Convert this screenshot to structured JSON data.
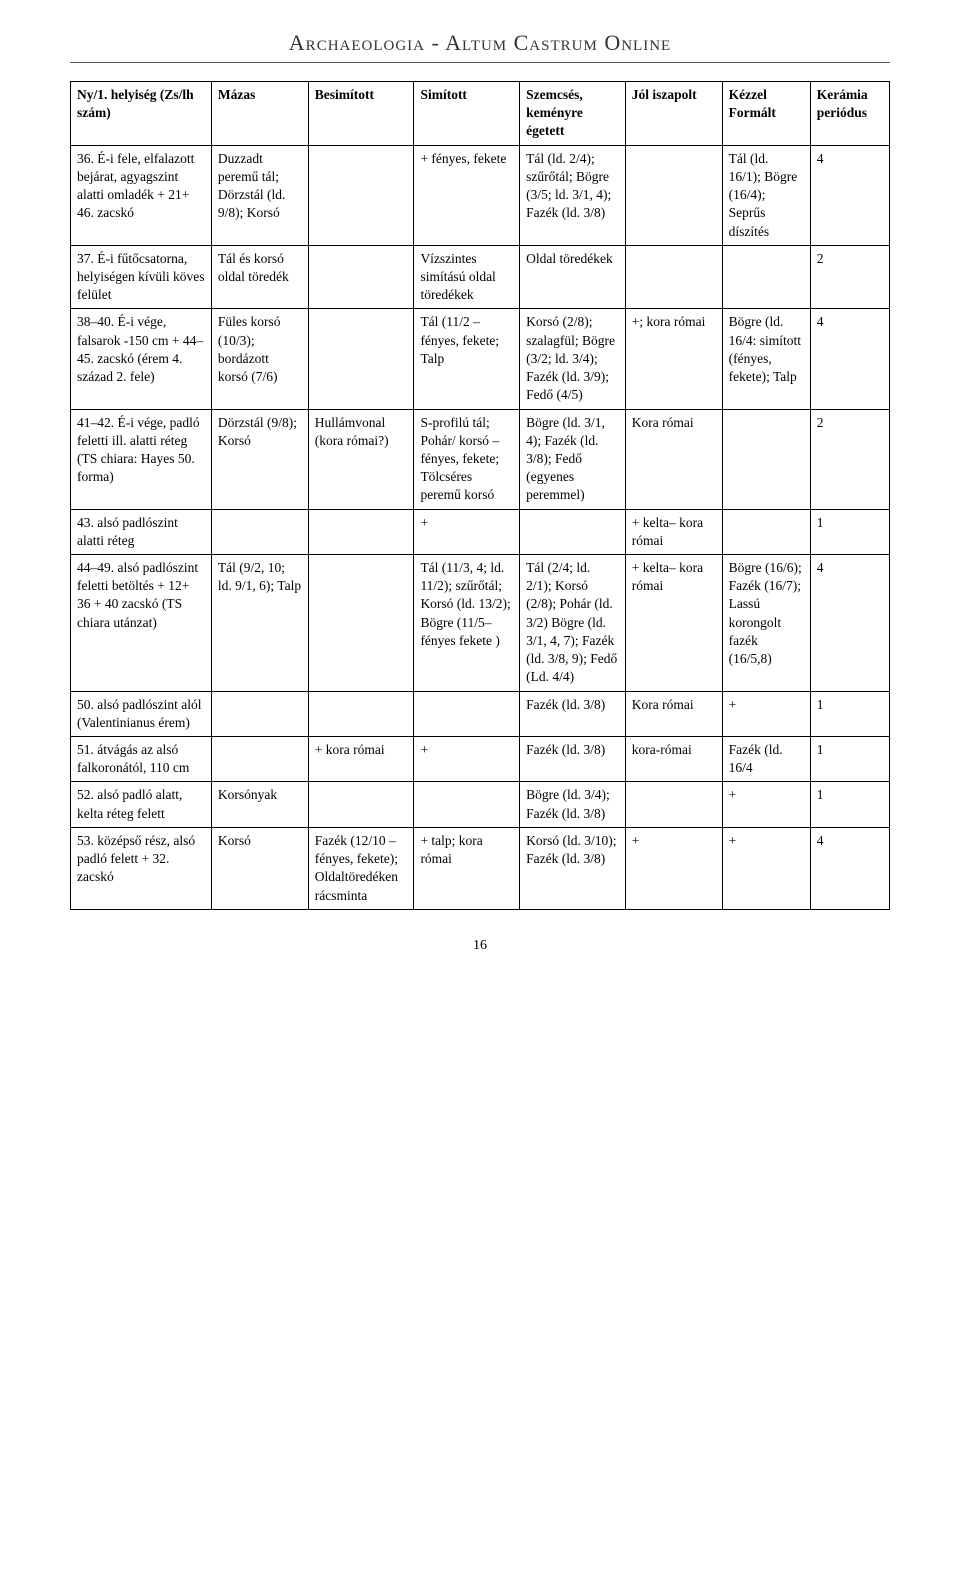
{
  "header": {
    "title": "Archaeologia - Altum Castrum Online"
  },
  "page_number": "16",
  "columns": [
    "Ny/1. helyiség (Zs/lh szám)",
    "Mázas",
    "Besimított",
    "Simított",
    "Szemcsés, keményre égetett",
    "Jól iszapolt",
    "Kézzel Formált",
    "Kerámia periódus"
  ],
  "rows": [
    {
      "c0": "36. É-i fele, elfalazott bejárat, agyagszint alatti omladék + 21+ 46. zacskó",
      "c1": "Duzzadt peremű tál; Dörzstál (ld. 9/8); Korsó",
      "c2": "",
      "c3": "+ fényes, fekete",
      "c4": "Tál (ld. 2/4); szűrőtál; Bögre (3/5; ld. 3/1, 4); Fazék (ld. 3/8)",
      "c5": "",
      "c6": "Tál (ld. 16/1); Bögre (16/4); Seprűs díszítés",
      "c7": "4"
    },
    {
      "c0": "37. É-i fűtőcsatorna, helyiségen kívüli köves felület",
      "c1": "Tál és korsó oldal töredék",
      "c2": "",
      "c3": "Vízszintes simítású oldal töredékek",
      "c4": "Oldal töredékek",
      "c5": "",
      "c6": "",
      "c7": "2"
    },
    {
      "c0": "38–40. É-i vége, falsarok -150 cm + 44–45. zacskó (érem 4. század 2. fele)",
      "c1": "Füles korsó (10/3); bordázott korsó (7/6)",
      "c2": "",
      "c3": "Tál (11/2 – fényes, fekete; Talp",
      "c4": "Korsó (2/8); szalagfül; Bögre (3/2; ld. 3/4); Fazék (ld. 3/9); Fedő (4/5)",
      "c5": "+; kora római",
      "c6": "Bögre (ld. 16/4: simított (fényes, fekete); Talp",
      "c7": "4"
    },
    {
      "c0": "41–42. É-i vége, padló feletti ill. alatti réteg (TS chiara: Hayes 50. forma)",
      "c1": "Dörzstál (9/8); Korsó",
      "c2": "Hullámvonal (kora római?)",
      "c3": "S-profilú tál; Pohár/ korsó – fényes, fekete; Tölcséres peremű korsó",
      "c4": "Bögre (ld. 3/1, 4); Fazék (ld. 3/8); Fedő (egyenes peremmel)",
      "c5": "Kora római",
      "c6": "",
      "c7": "2"
    },
    {
      "c0": "43. alsó padlószint alatti réteg",
      "c1": "",
      "c2": "",
      "c3": "+",
      "c4": "",
      "c5": "+ kelta– kora római",
      "c6": "",
      "c7": "1"
    },
    {
      "c0": "44–49. alsó padlószint feletti betöltés + 12+ 36 + 40 zacskó (TS chiara utánzat)",
      "c1": "Tál (9/2, 10; ld. 9/1, 6); Talp",
      "c2": "",
      "c3": "Tál (11/3, 4; ld. 11/2); szűrőtál; Korsó (ld. 13/2); Bögre (11/5– fényes fekete )",
      "c4": "Tál (2/4; ld. 2/1); Korsó (2/8); Pohár (ld. 3/2) Bögre (ld. 3/1, 4, 7); Fazék (ld. 3/8, 9); Fedő (Ld. 4/4)",
      "c5": "+ kelta– kora római",
      "c6": "Bögre (16/6); Fazék (16/7); Lassú korongolt fazék (16/5,8)",
      "c7": "4"
    },
    {
      "c0": "50. alsó padlószint alól (Valentinianus érem)",
      "c1": "",
      "c2": "",
      "c3": "",
      "c4": "Fazék (ld. 3/8)",
      "c5": "Kora római",
      "c6": "+",
      "c7": "1"
    },
    {
      "c0": "51. átvágás az alsó falkoronától, 110 cm",
      "c1": "",
      "c2": "+ kora római",
      "c3": "+",
      "c4": "Fazék (ld. 3/8)",
      "c5": "kora-római",
      "c6": "Fazék (ld. 16/4",
      "c7": "1"
    },
    {
      "c0": "52. alsó padló alatt, kelta réteg felett",
      "c1": "Korsónyak",
      "c2": "",
      "c3": "",
      "c4": "Bögre (ld. 3/4); Fazék (ld. 3/8)",
      "c5": "",
      "c6": "+",
      "c7": "1"
    },
    {
      "c0": "53. középső rész, alsó padló felett + 32. zacskó",
      "c1": "Korsó",
      "c2": "Fazék (12/10 – fényes, fekete); Oldaltöredéken rácsminta",
      "c3": "+ talp; kora római",
      "c4": "Korsó (ld. 3/10); Fazék (ld. 3/8)",
      "c5": "+",
      "c6": "+",
      "c7": "4"
    }
  ]
}
